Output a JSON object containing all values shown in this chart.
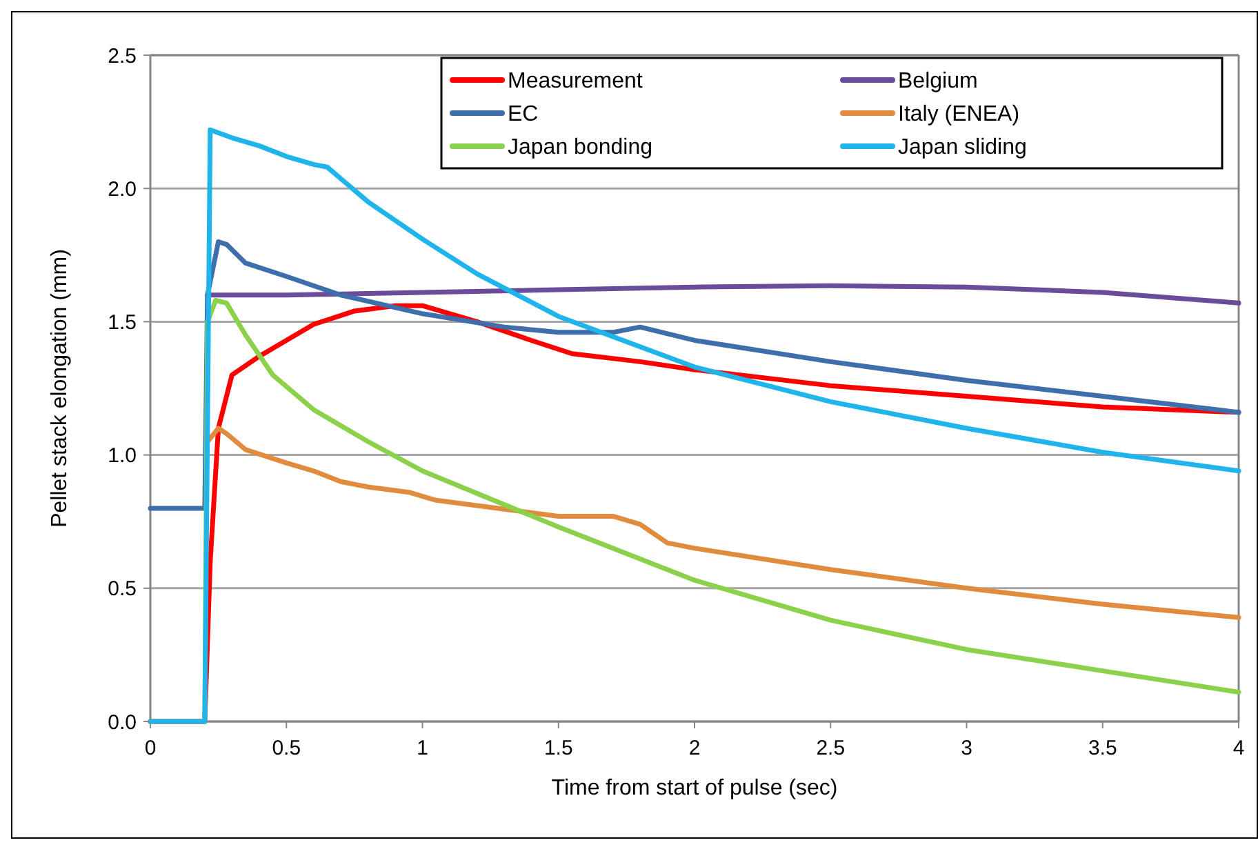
{
  "chart_data": {
    "type": "line",
    "xlabel": "Time from start of pulse (sec)",
    "ylabel": "Pellet stack elongation (mm)",
    "xlim": [
      0,
      4
    ],
    "xticks": [
      0,
      0.5,
      1,
      1.5,
      2,
      2.5,
      3,
      3.5,
      4
    ],
    "ylim": [
      0,
      2.5
    ],
    "yticks": [
      {
        "value": 0,
        "label": "0.0"
      },
      {
        "value": 0.5,
        "label": "0.5"
      },
      {
        "value": 1,
        "label": "1.0"
      },
      {
        "value": 1.5,
        "label": "1.5"
      },
      {
        "value": 2,
        "label": "2.0"
      },
      {
        "value": 2.5,
        "label": "2.5"
      }
    ],
    "grid": "y",
    "legend": "top right",
    "marker": "none",
    "line_style": "solid",
    "series": [
      {
        "name": "Measurement",
        "color": "#ff0000",
        "x": [
          0,
          0.2,
          0.22,
          0.25,
          0.3,
          0.4,
          0.5,
          0.6,
          0.75,
          0.9,
          1.0,
          1.2,
          1.4,
          1.55,
          1.8,
          2.0,
          2.5,
          3.0,
          3.5,
          4.0
        ],
        "values": [
          0,
          0,
          0.6,
          1.1,
          1.3,
          1.37,
          1.43,
          1.49,
          1.54,
          1.56,
          1.56,
          1.5,
          1.43,
          1.38,
          1.35,
          1.32,
          1.26,
          1.22,
          1.18,
          1.16
        ]
      },
      {
        "name": "Belgium",
        "color": "#6b4c9a",
        "x": [
          0.21,
          0.5,
          1.0,
          1.5,
          2.0,
          2.5,
          3.0,
          3.5,
          4.0
        ],
        "values": [
          1.6,
          1.6,
          1.61,
          1.62,
          1.63,
          1.635,
          1.63,
          1.61,
          1.57
        ]
      },
      {
        "name": "EC",
        "color": "#3f6eac",
        "x": [
          0,
          0.2,
          0.21,
          0.25,
          0.28,
          0.35,
          0.5,
          0.7,
          1.0,
          1.3,
          1.5,
          1.7,
          1.8,
          2.0,
          2.5,
          3.0,
          3.5,
          4.0
        ],
        "values": [
          0.8,
          0.8,
          1.6,
          1.8,
          1.79,
          1.72,
          1.67,
          1.6,
          1.53,
          1.48,
          1.46,
          1.46,
          1.48,
          1.43,
          1.35,
          1.28,
          1.22,
          1.16
        ]
      },
      {
        "name": "Italy (ENEA)",
        "color": "#e08b3e",
        "x": [
          0.21,
          0.25,
          0.28,
          0.35,
          0.5,
          0.6,
          0.7,
          0.8,
          0.95,
          1.05,
          1.2,
          1.5,
          1.7,
          1.8,
          1.9,
          2.0,
          2.5,
          3.0,
          3.5,
          4.0
        ],
        "values": [
          1.05,
          1.1,
          1.08,
          1.02,
          0.97,
          0.94,
          0.9,
          0.88,
          0.86,
          0.83,
          0.81,
          0.77,
          0.77,
          0.74,
          0.67,
          0.65,
          0.57,
          0.5,
          0.44,
          0.39
        ]
      },
      {
        "name": "Japan bonding",
        "color": "#8cd14c",
        "x": [
          0.2,
          0.21,
          0.24,
          0.28,
          0.35,
          0.45,
          0.6,
          0.8,
          1.0,
          1.5,
          2.0,
          2.5,
          3.0,
          3.5,
          4.0
        ],
        "values": [
          0,
          1.5,
          1.58,
          1.57,
          1.45,
          1.3,
          1.17,
          1.05,
          0.94,
          0.73,
          0.53,
          0.38,
          0.27,
          0.19,
          0.11
        ]
      },
      {
        "name": "Japan sliding",
        "color": "#1fb4ea",
        "x": [
          0,
          0.2,
          0.22,
          0.3,
          0.4,
          0.5,
          0.6,
          0.65,
          0.8,
          1.0,
          1.2,
          1.5,
          2.0,
          2.5,
          3.0,
          3.5,
          4.0
        ],
        "values": [
          0,
          0,
          2.22,
          2.19,
          2.16,
          2.12,
          2.09,
          2.08,
          1.95,
          1.81,
          1.68,
          1.52,
          1.33,
          1.2,
          1.1,
          1.01,
          0.94
        ]
      }
    ]
  }
}
